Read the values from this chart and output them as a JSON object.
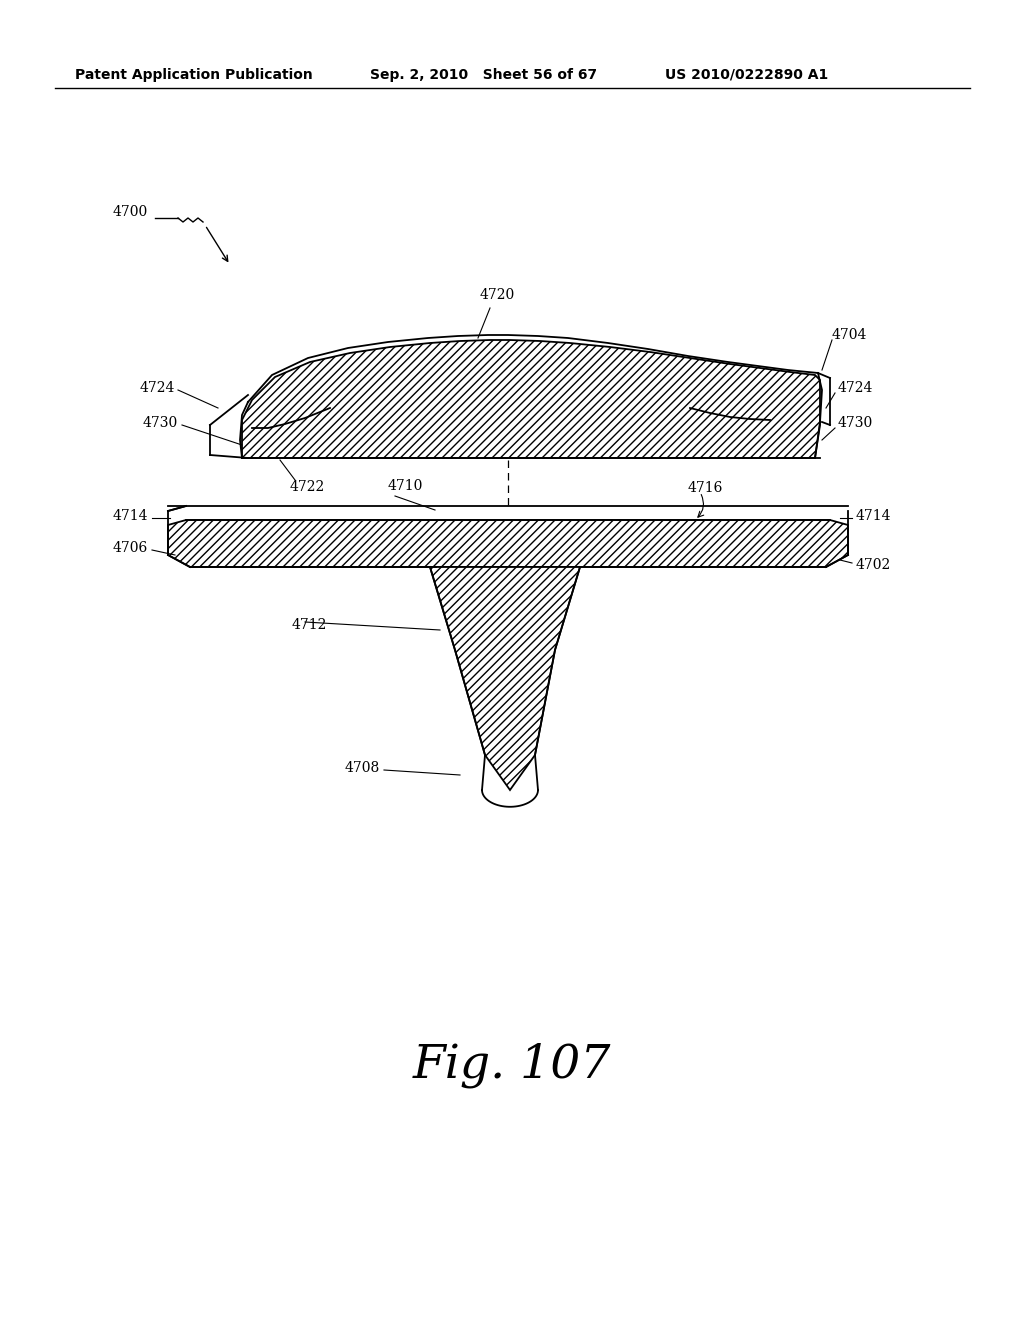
{
  "title": "Fig. 107",
  "header_left": "Patent Application Publication",
  "header_mid": "Sep. 2, 2010   Sheet 56 of 67",
  "header_right": "US 2010/0222890 A1",
  "bg_color": "#ffffff",
  "line_color": "#000000",
  "fig_caption": "Fig. 107"
}
